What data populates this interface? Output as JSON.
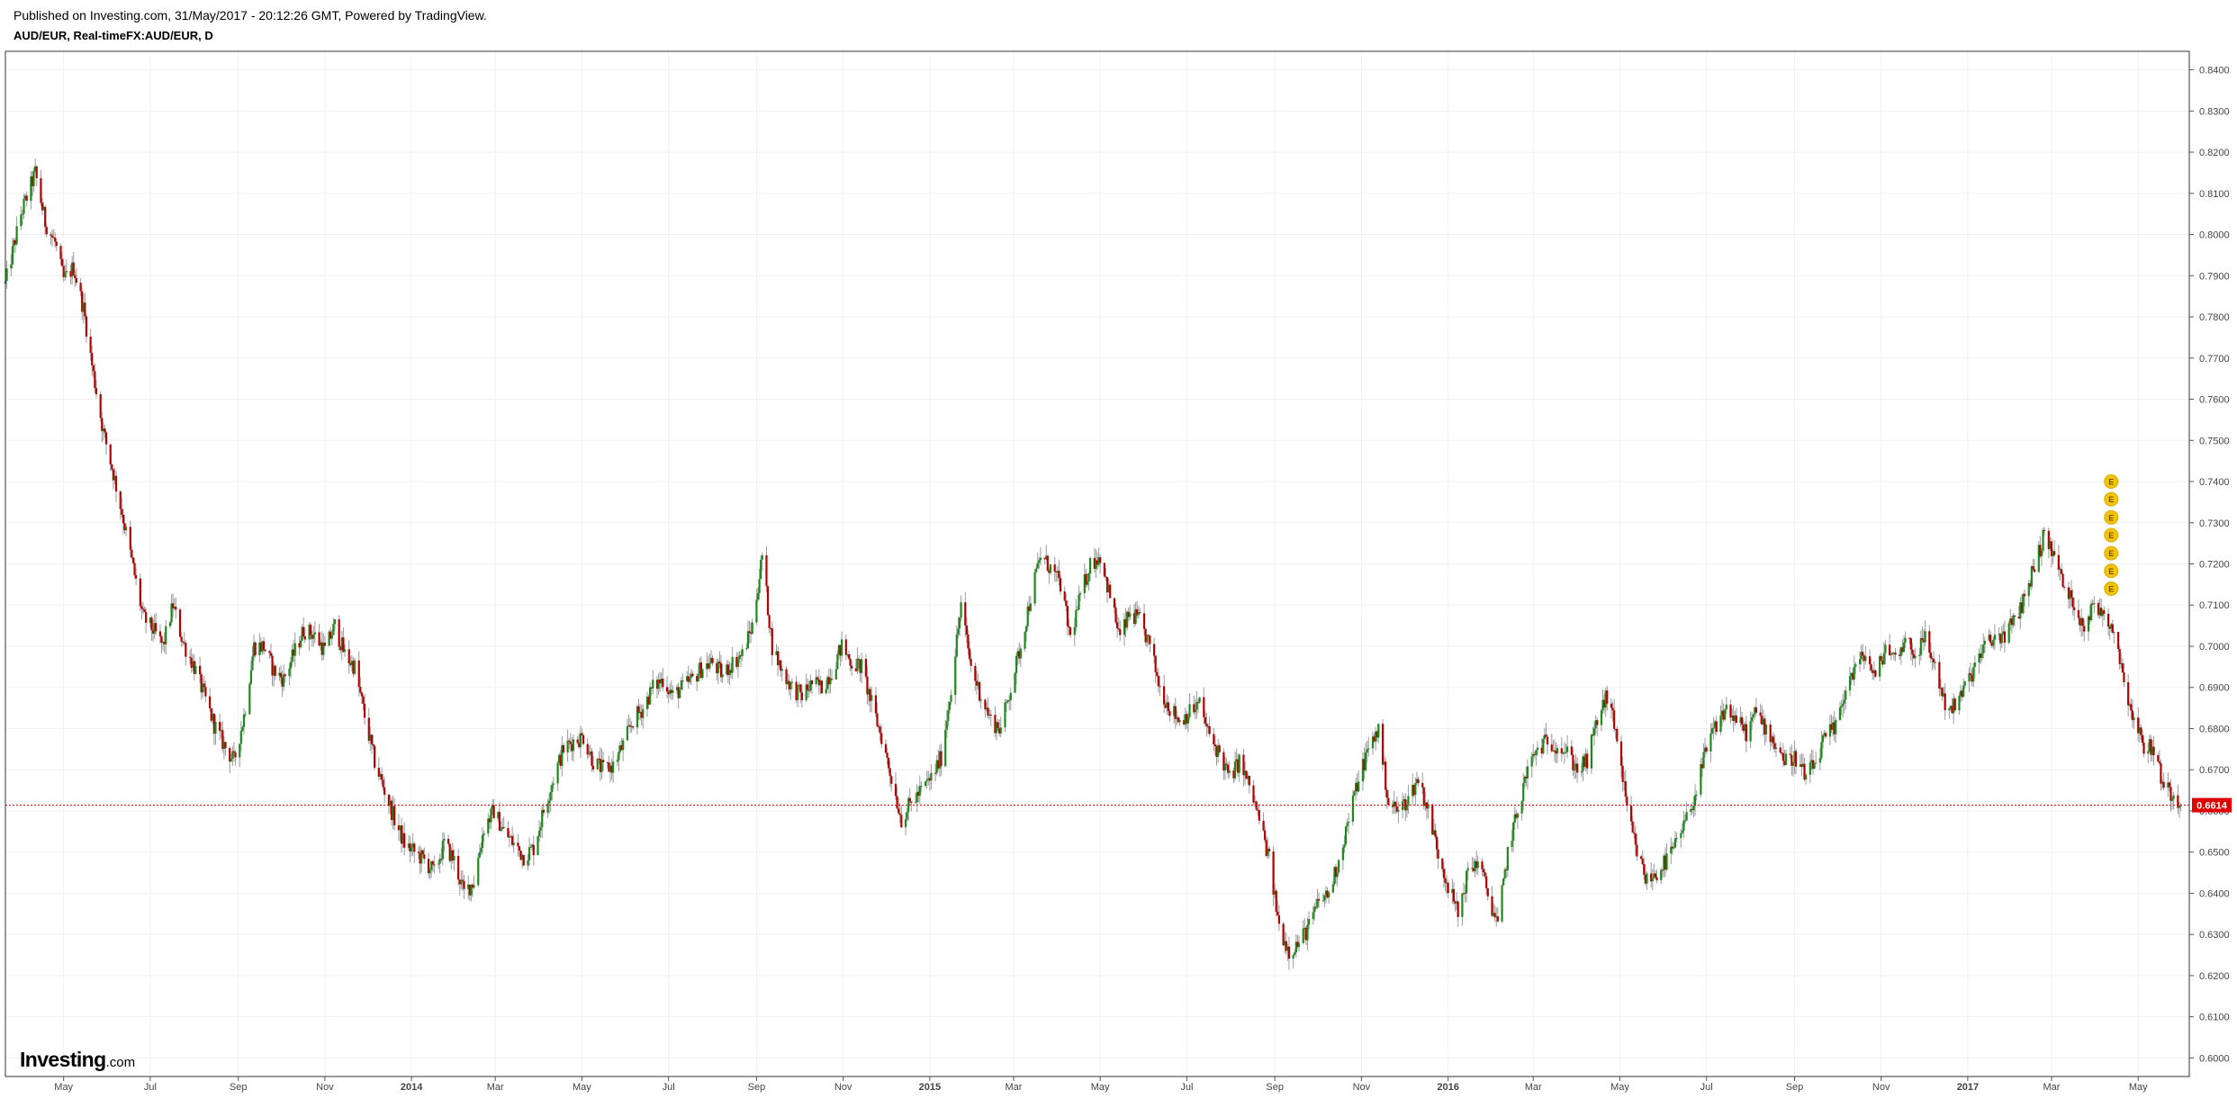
{
  "header": {
    "published": "Published on Investing.com, 31/May/2017 - 20:12:26 GMT, Powered by TradingView.",
    "symbol": "AUD/EUR, Real-timeFX:AUD/EUR, D"
  },
  "logo": {
    "brand": "Investing",
    "suffix": ".com"
  },
  "colors": {
    "up": "#1b8a1b",
    "down": "#b30000",
    "wick": "#9a9a9a",
    "grid": "#f0f0f0",
    "last_price_line": "#e00000",
    "last_price_badge": "#e00000",
    "event_marker": "#f5c400"
  },
  "chart_data": {
    "type": "candlestick",
    "interval": "D",
    "pair": "AUD/EUR",
    "ylim": [
      0.5955,
      0.8445
    ],
    "y_ticks": [
      "0.6000",
      "0.6100",
      "0.6200",
      "0.6300",
      "0.6400",
      "0.6500",
      "0.6600",
      "0.6700",
      "0.6800",
      "0.6900",
      "0.7000",
      "0.7100",
      "0.7200",
      "0.7300",
      "0.7400",
      "0.7500",
      "0.7600",
      "0.7700",
      "0.7800",
      "0.7900",
      "0.8000",
      "0.8100",
      "0.8200",
      "0.8300",
      "0.8400"
    ],
    "x_start": "2013-03-21",
    "x_end": "2017-06-06",
    "x_ticks": [
      {
        "date": "2013-05-01",
        "label": "May",
        "bold": false
      },
      {
        "date": "2013-07-01",
        "label": "Jul",
        "bold": false
      },
      {
        "date": "2013-09-01",
        "label": "Sep",
        "bold": false
      },
      {
        "date": "2013-11-01",
        "label": "Nov",
        "bold": false
      },
      {
        "date": "2014-01-01",
        "label": "2014",
        "bold": true
      },
      {
        "date": "2014-03-01",
        "label": "Mar",
        "bold": false
      },
      {
        "date": "2014-05-01",
        "label": "May",
        "bold": false
      },
      {
        "date": "2014-07-01",
        "label": "Jul",
        "bold": false
      },
      {
        "date": "2014-09-01",
        "label": "Sep",
        "bold": false
      },
      {
        "date": "2014-11-01",
        "label": "Nov",
        "bold": false
      },
      {
        "date": "2015-01-01",
        "label": "2015",
        "bold": true
      },
      {
        "date": "2015-03-01",
        "label": "Mar",
        "bold": false
      },
      {
        "date": "2015-05-01",
        "label": "May",
        "bold": false
      },
      {
        "date": "2015-07-01",
        "label": "Jul",
        "bold": false
      },
      {
        "date": "2015-09-01",
        "label": "Sep",
        "bold": false
      },
      {
        "date": "2015-11-01",
        "label": "Nov",
        "bold": false
      },
      {
        "date": "2016-01-01",
        "label": "2016",
        "bold": true
      },
      {
        "date": "2016-03-01",
        "label": "Mar",
        "bold": false
      },
      {
        "date": "2016-05-01",
        "label": "May",
        "bold": false
      },
      {
        "date": "2016-07-01",
        "label": "Jul",
        "bold": false
      },
      {
        "date": "2016-09-01",
        "label": "Sep",
        "bold": false
      },
      {
        "date": "2016-11-01",
        "label": "Nov",
        "bold": false
      },
      {
        "date": "2017-01-01",
        "label": "2017",
        "bold": true
      },
      {
        "date": "2017-03-01",
        "label": "Mar",
        "bold": false
      },
      {
        "date": "2017-05-01",
        "label": "May",
        "bold": false
      }
    ],
    "close_path": [
      [
        "2013-03-21",
        0.788
      ],
      [
        "2013-04-01",
        0.805
      ],
      [
        "2013-04-11",
        0.815
      ],
      [
        "2013-04-18",
        0.803
      ],
      [
        "2013-04-25",
        0.798
      ],
      [
        "2013-05-01",
        0.789
      ],
      [
        "2013-05-08",
        0.792
      ],
      [
        "2013-05-15",
        0.782
      ],
      [
        "2013-05-22",
        0.766
      ],
      [
        "2013-05-29",
        0.752
      ],
      [
        "2013-06-05",
        0.742
      ],
      [
        "2013-06-12",
        0.731
      ],
      [
        "2013-06-19",
        0.719
      ],
      [
        "2013-06-26",
        0.707
      ],
      [
        "2013-07-03",
        0.704
      ],
      [
        "2013-07-10",
        0.7
      ],
      [
        "2013-07-17",
        0.71
      ],
      [
        "2013-07-24",
        0.701
      ],
      [
        "2013-08-01",
        0.695
      ],
      [
        "2013-08-08",
        0.688
      ],
      [
        "2013-08-15",
        0.681
      ],
      [
        "2013-08-22",
        0.676
      ],
      [
        "2013-08-29",
        0.672
      ],
      [
        "2013-09-05",
        0.683
      ],
      [
        "2013-09-12",
        0.7
      ],
      [
        "2013-09-19",
        0.7
      ],
      [
        "2013-09-26",
        0.694
      ],
      [
        "2013-10-03",
        0.692
      ],
      [
        "2013-10-10",
        0.698
      ],
      [
        "2013-10-17",
        0.704
      ],
      [
        "2013-10-24",
        0.703
      ],
      [
        "2013-11-01",
        0.699
      ],
      [
        "2013-11-08",
        0.705
      ],
      [
        "2013-11-15",
        0.698
      ],
      [
        "2013-11-22",
        0.695
      ],
      [
        "2013-11-29",
        0.683
      ],
      [
        "2013-12-06",
        0.672
      ],
      [
        "2013-12-13",
        0.665
      ],
      [
        "2013-12-20",
        0.658
      ],
      [
        "2013-12-27",
        0.652
      ],
      [
        "2014-01-03",
        0.65
      ],
      [
        "2014-01-10",
        0.648
      ],
      [
        "2014-01-17",
        0.645
      ],
      [
        "2014-01-24",
        0.652
      ],
      [
        "2014-01-31",
        0.648
      ],
      [
        "2014-02-07",
        0.64
      ],
      [
        "2014-02-14",
        0.643
      ],
      [
        "2014-02-21",
        0.656
      ],
      [
        "2014-02-28",
        0.66
      ],
      [
        "2014-03-07",
        0.655
      ],
      [
        "2014-03-14",
        0.652
      ],
      [
        "2014-03-21",
        0.649
      ],
      [
        "2014-03-28",
        0.651
      ],
      [
        "2014-04-04",
        0.66
      ],
      [
        "2014-04-11",
        0.668
      ],
      [
        "2014-04-18",
        0.675
      ],
      [
        "2014-04-25",
        0.677
      ],
      [
        "2014-05-02",
        0.678
      ],
      [
        "2014-05-09",
        0.672
      ],
      [
        "2014-05-16",
        0.67
      ],
      [
        "2014-05-23",
        0.671
      ],
      [
        "2014-05-30",
        0.676
      ],
      [
        "2014-06-06",
        0.682
      ],
      [
        "2014-06-13",
        0.685
      ],
      [
        "2014-06-20",
        0.69
      ],
      [
        "2014-06-27",
        0.692
      ],
      [
        "2014-07-04",
        0.688
      ],
      [
        "2014-07-11",
        0.69
      ],
      [
        "2014-07-18",
        0.692
      ],
      [
        "2014-07-25",
        0.695
      ],
      [
        "2014-08-01",
        0.696
      ],
      [
        "2014-08-08",
        0.693
      ],
      [
        "2014-08-15",
        0.696
      ],
      [
        "2014-08-22",
        0.698
      ],
      [
        "2014-08-29",
        0.705
      ],
      [
        "2014-09-05",
        0.722
      ],
      [
        "2014-09-12",
        0.7
      ],
      [
        "2014-09-19",
        0.694
      ],
      [
        "2014-09-26",
        0.69
      ],
      [
        "2014-10-03",
        0.688
      ],
      [
        "2014-10-10",
        0.691
      ],
      [
        "2014-10-17",
        0.69
      ],
      [
        "2014-10-24",
        0.694
      ],
      [
        "2014-10-31",
        0.7
      ],
      [
        "2014-11-07",
        0.696
      ],
      [
        "2014-11-14",
        0.695
      ],
      [
        "2014-11-21",
        0.686
      ],
      [
        "2014-11-28",
        0.678
      ],
      [
        "2014-12-05",
        0.668
      ],
      [
        "2014-12-12",
        0.658
      ],
      [
        "2014-12-19",
        0.662
      ],
      [
        "2014-12-26",
        0.665
      ],
      [
        "2015-01-02",
        0.668
      ],
      [
        "2015-01-09",
        0.673
      ],
      [
        "2015-01-16",
        0.69
      ],
      [
        "2015-01-23",
        0.71
      ],
      [
        "2015-01-30",
        0.695
      ],
      [
        "2015-02-06",
        0.688
      ],
      [
        "2015-02-13",
        0.682
      ],
      [
        "2015-02-20",
        0.68
      ],
      [
        "2015-02-27",
        0.69
      ],
      [
        "2015-03-06",
        0.7
      ],
      [
        "2015-03-13",
        0.712
      ],
      [
        "2015-03-20",
        0.722
      ],
      [
        "2015-03-27",
        0.719
      ],
      [
        "2015-04-03",
        0.715
      ],
      [
        "2015-04-10",
        0.702
      ],
      [
        "2015-04-17",
        0.712
      ],
      [
        "2015-04-24",
        0.72
      ],
      [
        "2015-05-01",
        0.722
      ],
      [
        "2015-05-08",
        0.712
      ],
      [
        "2015-05-15",
        0.702
      ],
      [
        "2015-05-22",
        0.708
      ],
      [
        "2015-05-29",
        0.706
      ],
      [
        "2015-06-05",
        0.7
      ],
      [
        "2015-06-12",
        0.69
      ],
      [
        "2015-06-19",
        0.685
      ],
      [
        "2015-06-26",
        0.682
      ],
      [
        "2015-07-03",
        0.684
      ],
      [
        "2015-07-10",
        0.686
      ],
      [
        "2015-07-17",
        0.678
      ],
      [
        "2015-07-24",
        0.674
      ],
      [
        "2015-07-31",
        0.668
      ],
      [
        "2015-08-07",
        0.672
      ],
      [
        "2015-08-14",
        0.666
      ],
      [
        "2015-08-21",
        0.658
      ],
      [
        "2015-08-28",
        0.648
      ],
      [
        "2015-09-04",
        0.632
      ],
      [
        "2015-09-11",
        0.626
      ],
      [
        "2015-09-18",
        0.628
      ],
      [
        "2015-09-25",
        0.632
      ],
      [
        "2015-10-02",
        0.638
      ],
      [
        "2015-10-09",
        0.64
      ],
      [
        "2015-10-16",
        0.648
      ],
      [
        "2015-10-23",
        0.658
      ],
      [
        "2015-10-30",
        0.668
      ],
      [
        "2015-11-06",
        0.675
      ],
      [
        "2015-11-13",
        0.68
      ],
      [
        "2015-11-20",
        0.662
      ],
      [
        "2015-11-27",
        0.66
      ],
      [
        "2015-12-04",
        0.663
      ],
      [
        "2015-12-11",
        0.668
      ],
      [
        "2015-12-18",
        0.66
      ],
      [
        "2015-12-25",
        0.65
      ],
      [
        "2016-01-01",
        0.642
      ],
      [
        "2016-01-08",
        0.635
      ],
      [
        "2016-01-15",
        0.645
      ],
      [
        "2016-01-22",
        0.648
      ],
      [
        "2016-01-29",
        0.64
      ],
      [
        "2016-02-05",
        0.632
      ],
      [
        "2016-02-12",
        0.65
      ],
      [
        "2016-02-19",
        0.66
      ],
      [
        "2016-02-26",
        0.67
      ],
      [
        "2016-03-04",
        0.675
      ],
      [
        "2016-03-11",
        0.677
      ],
      [
        "2016-03-18",
        0.676
      ],
      [
        "2016-03-25",
        0.674
      ],
      [
        "2016-04-01",
        0.67
      ],
      [
        "2016-04-08",
        0.672
      ],
      [
        "2016-04-15",
        0.682
      ],
      [
        "2016-04-22",
        0.688
      ],
      [
        "2016-04-29",
        0.678
      ],
      [
        "2016-05-06",
        0.66
      ],
      [
        "2016-05-13",
        0.65
      ],
      [
        "2016-05-20",
        0.643
      ],
      [
        "2016-05-27",
        0.645
      ],
      [
        "2016-06-03",
        0.648
      ],
      [
        "2016-06-10",
        0.652
      ],
      [
        "2016-06-17",
        0.658
      ],
      [
        "2016-06-24",
        0.665
      ],
      [
        "2016-07-01",
        0.675
      ],
      [
        "2016-07-08",
        0.681
      ],
      [
        "2016-07-15",
        0.685
      ],
      [
        "2016-07-22",
        0.682
      ],
      [
        "2016-07-29",
        0.679
      ],
      [
        "2016-08-05",
        0.684
      ],
      [
        "2016-08-12",
        0.68
      ],
      [
        "2016-08-19",
        0.676
      ],
      [
        "2016-08-26",
        0.672
      ],
      [
        "2016-09-02",
        0.673
      ],
      [
        "2016-09-09",
        0.668
      ],
      [
        "2016-09-16",
        0.672
      ],
      [
        "2016-09-23",
        0.678
      ],
      [
        "2016-09-30",
        0.68
      ],
      [
        "2016-10-07",
        0.69
      ],
      [
        "2016-10-14",
        0.695
      ],
      [
        "2016-10-21",
        0.698
      ],
      [
        "2016-10-28",
        0.692
      ],
      [
        "2016-11-04",
        0.7
      ],
      [
        "2016-11-11",
        0.697
      ],
      [
        "2016-11-18",
        0.702
      ],
      [
        "2016-11-25",
        0.698
      ],
      [
        "2016-12-02",
        0.702
      ],
      [
        "2016-12-09",
        0.695
      ],
      [
        "2016-12-16",
        0.686
      ],
      [
        "2016-12-23",
        0.685
      ],
      [
        "2016-12-30",
        0.69
      ],
      [
        "2017-01-06",
        0.695
      ],
      [
        "2017-01-13",
        0.7
      ],
      [
        "2017-01-20",
        0.702
      ],
      [
        "2017-01-27",
        0.703
      ],
      [
        "2017-02-03",
        0.706
      ],
      [
        "2017-02-10",
        0.712
      ],
      [
        "2017-02-17",
        0.72
      ],
      [
        "2017-02-24",
        0.727
      ],
      [
        "2017-03-03",
        0.722
      ],
      [
        "2017-03-10",
        0.714
      ],
      [
        "2017-03-17",
        0.71
      ],
      [
        "2017-03-24",
        0.705
      ],
      [
        "2017-03-31",
        0.71
      ],
      [
        "2017-04-07",
        0.708
      ],
      [
        "2017-04-14",
        0.704
      ],
      [
        "2017-04-21",
        0.692
      ],
      [
        "2017-04-28",
        0.682
      ],
      [
        "2017-05-05",
        0.676
      ],
      [
        "2017-05-12",
        0.675
      ],
      [
        "2017-05-19",
        0.666
      ],
      [
        "2017-05-26",
        0.664
      ],
      [
        "2017-05-31",
        0.6614
      ]
    ],
    "last_price": "0.6614",
    "event_markers": {
      "label": "E",
      "date": "2017-04-12",
      "prices": [
        0.74,
        0.7357,
        0.7313,
        0.727,
        0.7226,
        0.7183,
        0.714
      ]
    }
  }
}
